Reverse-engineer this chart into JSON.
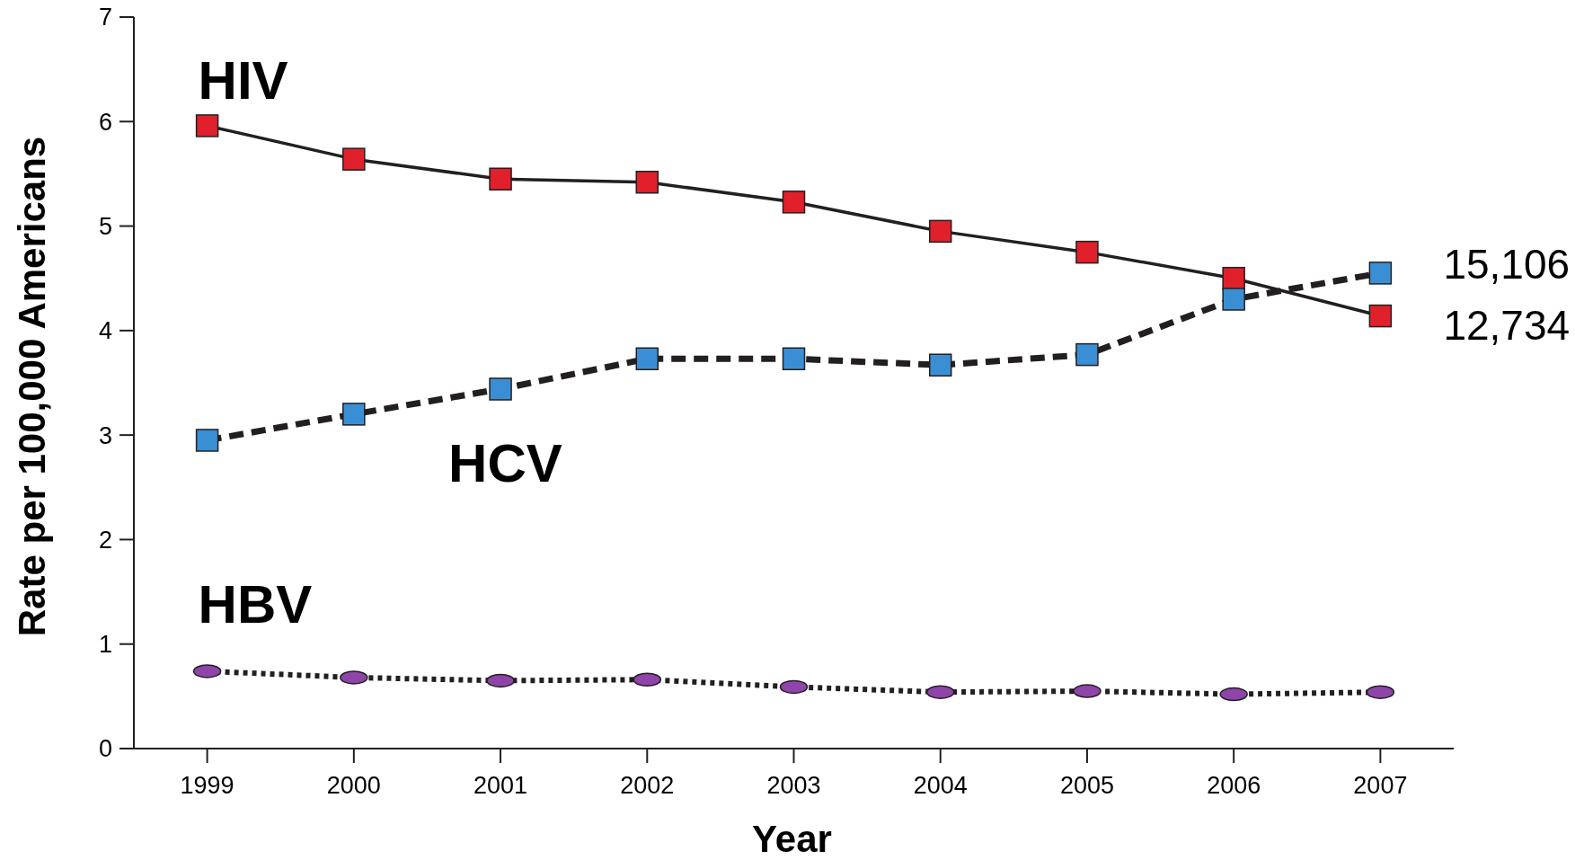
{
  "chart_data": {
    "type": "line",
    "xlabel": "Year",
    "ylabel": "Rate per 100,000 Americans",
    "x": [
      1999,
      2000,
      2001,
      2002,
      2003,
      2004,
      2005,
      2006,
      2007
    ],
    "xlim": [
      1998.5,
      2007.5
    ],
    "xticks": [
      1999,
      2000,
      2001,
      2002,
      2003,
      2004,
      2005,
      2006,
      2007
    ],
    "ylim": [
      0,
      7
    ],
    "yticks": [
      0,
      1,
      2,
      3,
      4,
      5,
      6,
      7
    ],
    "grid": false,
    "series": [
      {
        "name": "HIV",
        "color": "#e0202a",
        "marker": "square",
        "line_style": "solid",
        "values": [
          5.96,
          5.64,
          5.45,
          5.42,
          5.23,
          4.95,
          4.75,
          4.5,
          4.14
        ]
      },
      {
        "name": "HCV",
        "color": "#3a8fd4",
        "marker": "square",
        "line_style": "dashed",
        "values": [
          2.95,
          3.2,
          3.44,
          3.73,
          3.73,
          3.67,
          3.77,
          4.3,
          4.55
        ]
      },
      {
        "name": "HBV",
        "color": "#8e44a8",
        "marker": "circle",
        "line_style": "dotted",
        "values": [
          0.74,
          0.68,
          0.65,
          0.66,
          0.59,
          0.54,
          0.55,
          0.52,
          0.54
        ]
      }
    ],
    "annotations": [
      {
        "text": "15,106",
        "x": 2007,
        "y": 4.55
      },
      {
        "text": "12,734",
        "x": 2007,
        "y": 4.14
      }
    ]
  }
}
